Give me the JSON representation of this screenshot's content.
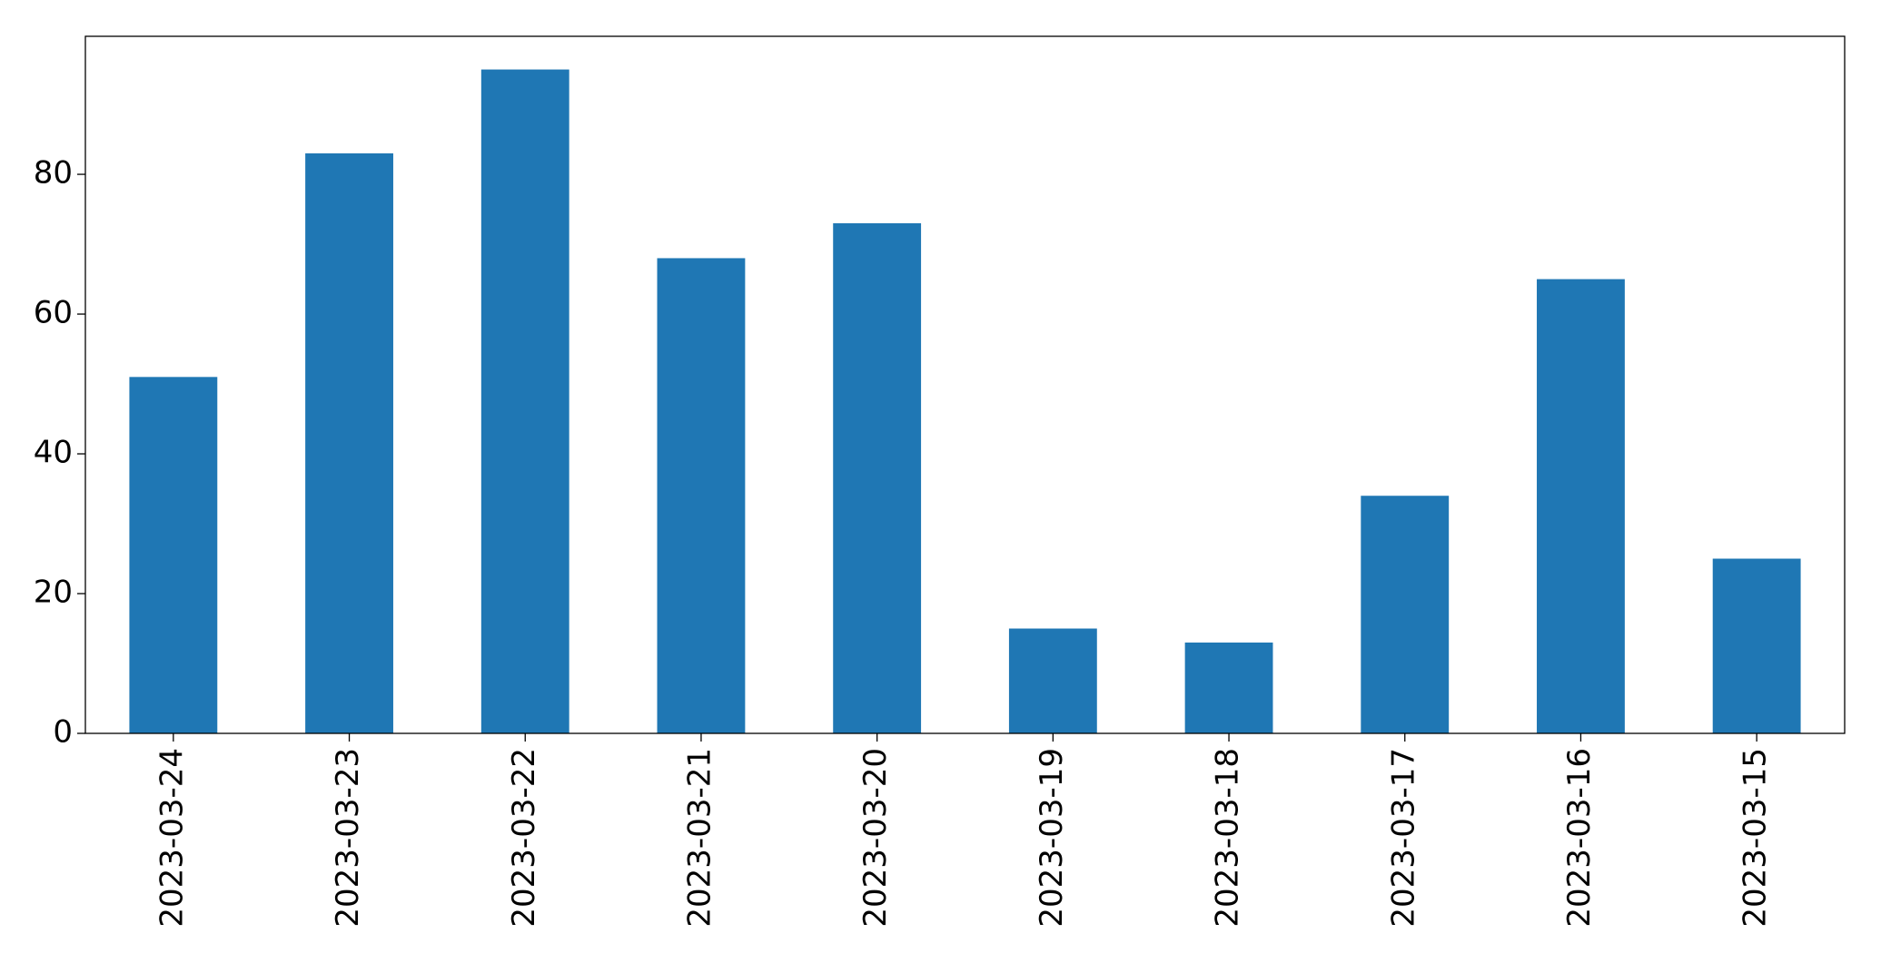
{
  "chart_data": {
    "type": "bar",
    "categories": [
      "2023-03-24",
      "2023-03-23",
      "2023-03-22",
      "2023-03-21",
      "2023-03-20",
      "2023-03-19",
      "2023-03-18",
      "2023-03-17",
      "2023-03-16",
      "2023-03-15"
    ],
    "values": [
      51,
      83,
      95,
      68,
      73,
      15,
      13,
      34,
      65,
      25
    ],
    "color": "#1f77b4",
    "ylim": [
      0,
      99.75
    ],
    "yticks": [
      0,
      20,
      40,
      60,
      80
    ],
    "grid": false
  }
}
